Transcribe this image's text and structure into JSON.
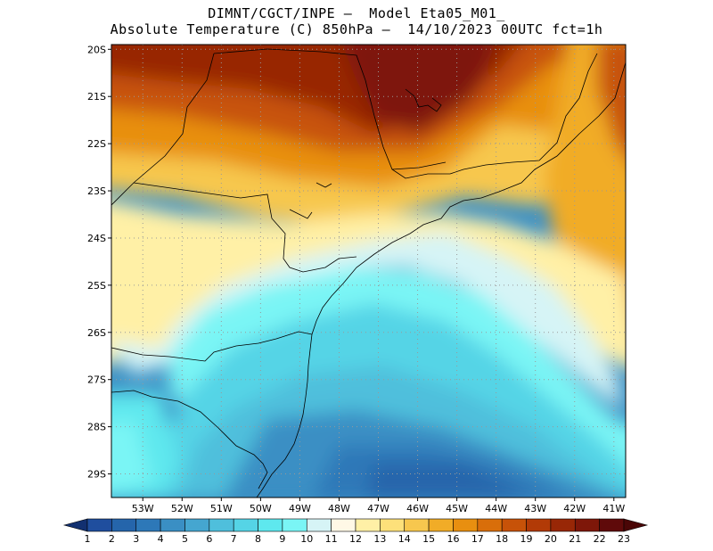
{
  "title": {
    "line1": "DIMNT/CGCT/INPE –  Model Eta05_M01_",
    "line2": "Absolute Temperature (C) 850hPa –  14/10/2023 00UTC fct=1h"
  },
  "map": {
    "lat_labels": [
      "20S",
      "21S",
      "22S",
      "23S",
      "24S",
      "25S",
      "26S",
      "27S",
      "28S",
      "29S"
    ],
    "lon_labels": [
      "53W",
      "52W",
      "51W",
      "50W",
      "49W",
      "48W",
      "47W",
      "46W",
      "45W",
      "44W",
      "43W",
      "42W",
      "41W"
    ],
    "lat_range": [
      -29.5,
      -19.9
    ],
    "lon_range": [
      -53.8,
      -40.7
    ]
  },
  "colorbar": {
    "labels": [
      "1",
      "2",
      "3",
      "4",
      "5",
      "6",
      "7",
      "8",
      "9",
      "10",
      "11",
      "12",
      "13",
      "14",
      "15",
      "16",
      "17",
      "18",
      "19",
      "20",
      "21",
      "22",
      "23"
    ],
    "colors": [
      "#1b3a8c",
      "#1f4e9e",
      "#2565ab",
      "#2d78b8",
      "#3a8fc4",
      "#45a6d0",
      "#4fbfdc",
      "#55d4e6",
      "#5ee8ee",
      "#7af5f5",
      "#d6f4f6",
      "#fff8e6",
      "#fff0a6",
      "#fde07a",
      "#f7c74e",
      "#f1ac27",
      "#e88f10",
      "#d96e0a",
      "#c75208",
      "#b23a06",
      "#982706",
      "#7e1709",
      "#5f0a0a"
    ],
    "under_color": "#123070",
    "over_color": "#4a0606"
  }
}
